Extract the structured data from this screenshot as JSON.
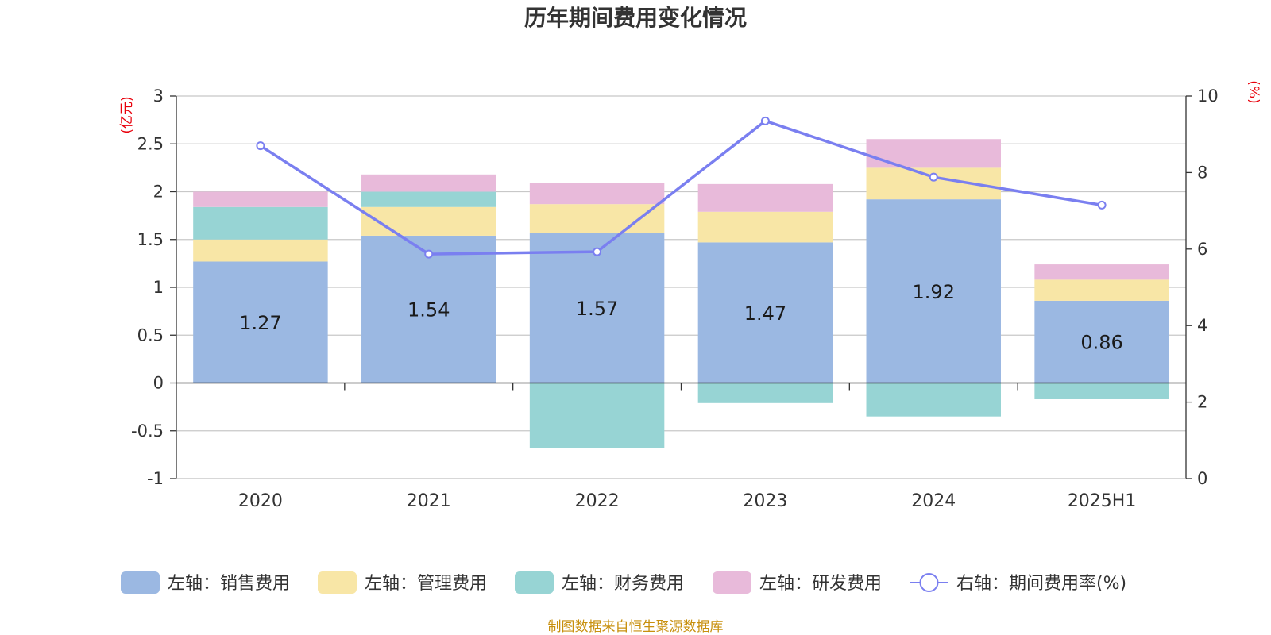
{
  "chart_data": {
    "type": "bar",
    "title": "历年期间费用变化情况",
    "categories": [
      "2020",
      "2021",
      "2022",
      "2023",
      "2024",
      "2025H1"
    ],
    "left_axis": {
      "unit": "(亿元)",
      "ylim": [
        -1,
        3
      ],
      "ticks": [
        "-1",
        "-0.5",
        "0",
        "0.5",
        "1",
        "1.5",
        "2",
        "2.5",
        "3"
      ]
    },
    "right_axis": {
      "unit": "(%)",
      "ylim": [
        0,
        10
      ],
      "ticks": [
        "0",
        "2",
        "4",
        "6",
        "8",
        "10"
      ]
    },
    "series": [
      {
        "name": "左轴：销售费用",
        "type": "bar",
        "axis": "left",
        "color": "#9bb8e2",
        "values": [
          1.27,
          1.54,
          1.57,
          1.47,
          1.92,
          0.86
        ],
        "labels": [
          "1.27",
          "1.54",
          "1.57",
          "1.47",
          "1.92",
          "0.86"
        ]
      },
      {
        "name": "左轴：管理费用",
        "type": "bar",
        "axis": "left",
        "color": "#f8e6a6",
        "values": [
          0.23,
          0.3,
          0.3,
          0.32,
          0.33,
          0.22
        ]
      },
      {
        "name": "左轴：财务费用",
        "type": "bar",
        "axis": "left",
        "color": "#97d4d4",
        "values": [
          0.34,
          0.16,
          -0.68,
          -0.21,
          -0.35,
          -0.17
        ]
      },
      {
        "name": "左轴：研发费用",
        "type": "bar",
        "axis": "left",
        "color": "#e8bada",
        "values": [
          0.16,
          0.18,
          0.22,
          0.29,
          0.3,
          0.16
        ]
      },
      {
        "name": "右轴：期间费用率(%)",
        "type": "line",
        "axis": "right",
        "color": "#7a7ff0",
        "values": [
          8.7,
          5.87,
          5.93,
          9.35,
          7.88,
          7.15
        ]
      }
    ],
    "grid": true,
    "legend_position": "bottom"
  },
  "source_note": "制图数据来自恒生聚源数据库"
}
